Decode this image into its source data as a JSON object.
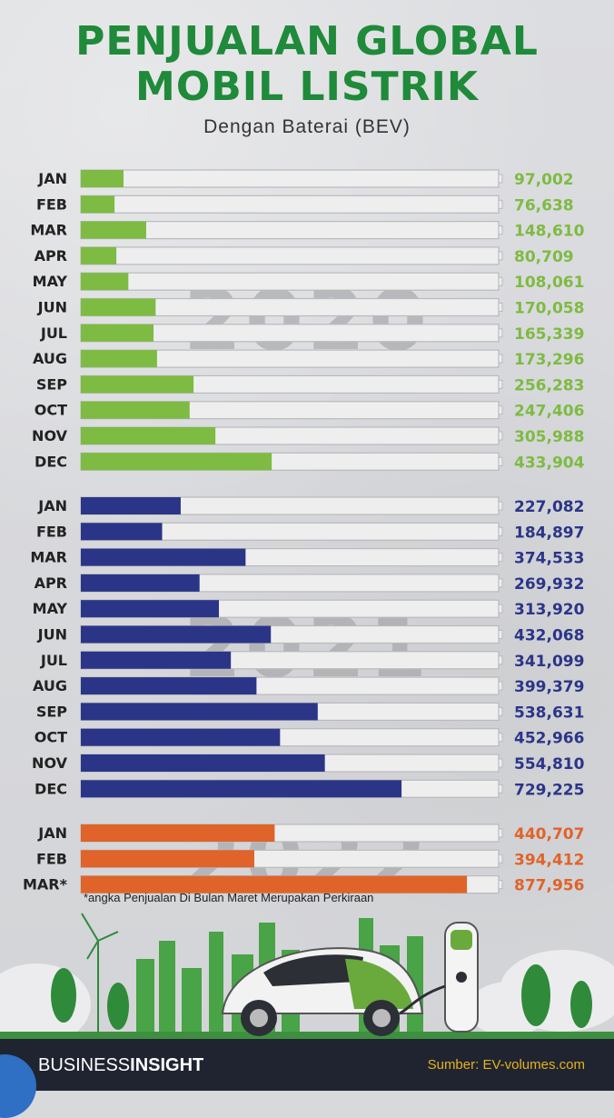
{
  "title_line1": "PENJUALAN GLOBAL",
  "title_line2": "MOBIL LISTRIK",
  "subtitle": "Dengan Baterai (BEV)",
  "footnote": "*angka Penjualan Di Bulan Maret Merupakan Perkiraan",
  "footer": {
    "brand_part1": "BUSINESS",
    "brand_part2": "INSIGHT",
    "source": "Sumber: EV-volumes.com"
  },
  "colors": {
    "title": "#1f8a3a",
    "y2020": "#7dbb42",
    "y2021": "#2b3588",
    "y2022": "#e0632a",
    "bar_track": "#eeeeef"
  },
  "chart_data": {
    "type": "bar",
    "orientation": "horizontal",
    "title": "PENJUALAN GLOBAL MOBIL LISTRIK",
    "subtitle": "Dengan Baterai (BEV)",
    "xlim": [
      0,
      950000
    ],
    "series": [
      {
        "name": "2020",
        "color": "#7dbb42",
        "categories": [
          "JAN",
          "FEB",
          "MAR",
          "APR",
          "MAY",
          "JUN",
          "JUL",
          "AUG",
          "SEP",
          "OCT",
          "NOV",
          "DEC"
        ],
        "values": [
          97002,
          76638,
          148610,
          80709,
          108061,
          170058,
          165339,
          173296,
          256283,
          247406,
          305988,
          433904
        ],
        "labels": [
          "97,002",
          "76,638",
          "148,610",
          "80,709",
          "108,061",
          "170,058",
          "165,339",
          "173,296",
          "256,283",
          "247,406",
          "305,988",
          "433,904"
        ]
      },
      {
        "name": "2021",
        "color": "#2b3588",
        "categories": [
          "JAN",
          "FEB",
          "MAR",
          "APR",
          "MAY",
          "JUN",
          "JUL",
          "AUG",
          "SEP",
          "OCT",
          "NOV",
          "DEC"
        ],
        "values": [
          227082,
          184897,
          374533,
          269932,
          313920,
          432068,
          341099,
          399379,
          538631,
          452966,
          554810,
          729225
        ],
        "labels": [
          "227,082",
          "184,897",
          "374,533",
          "269,932",
          "313,920",
          "432,068",
          "341,099",
          "399,379",
          "538,631",
          "452,966",
          "554,810",
          "729,225"
        ]
      },
      {
        "name": "2022",
        "color": "#e0632a",
        "categories": [
          "JAN",
          "FEB",
          "MAR*"
        ],
        "values": [
          440707,
          394412,
          877956
        ],
        "labels": [
          "440,707",
          "394,412",
          "877,956"
        ]
      }
    ]
  }
}
